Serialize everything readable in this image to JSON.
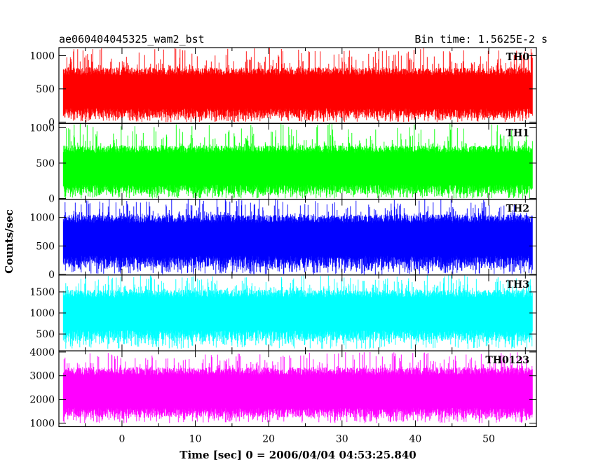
{
  "header": {
    "left": "ae060404045325_wam2_bst",
    "right": "Bin time: 1.5625E-2 s"
  },
  "chart_data": {
    "type": "line",
    "xlabel": "Time [sec] 0 = 2006/04/04 04:53:25.840",
    "ylabel": "Counts/sec",
    "xlim": [
      -8.6,
      56.5
    ],
    "data_x_range": [
      -8.0,
      56.0
    ],
    "x_ticks": [
      0,
      10,
      20,
      30,
      40,
      50
    ],
    "panels": [
      {
        "label": "TH0",
        "color": "#ff0000",
        "ylim": [
          -20,
          1120
        ],
        "y_ticks": [
          0,
          500,
          1000
        ],
        "baseline": 350,
        "typical_low": 60,
        "typical_high": 820,
        "min": 0,
        "max": 1120
      },
      {
        "label": "TH1",
        "color": "#00ff00",
        "ylim": [
          -10,
          1060
        ],
        "y_ticks": [
          0,
          500,
          1000
        ],
        "baseline": 330,
        "typical_low": 60,
        "typical_high": 750,
        "min": 0,
        "max": 1060
      },
      {
        "label": "TH2",
        "color": "#0000ff",
        "ylim": [
          -10,
          1320
        ],
        "y_ticks": [
          0,
          500,
          1000
        ],
        "baseline": 540,
        "typical_low": 110,
        "typical_high": 1050,
        "min": 0,
        "max": 1320
      },
      {
        "label": "TH3",
        "color": "#00ffff",
        "ylim": [
          100,
          1900
        ],
        "y_ticks": [
          500,
          1000,
          1500
        ],
        "baseline": 850,
        "typical_low": 330,
        "typical_high": 1550,
        "min": 140,
        "max": 1900
      },
      {
        "label": "TH0123",
        "color": "#ff00ff",
        "ylim": [
          850,
          4050
        ],
        "y_ticks": [
          1000,
          2000,
          3000,
          4000
        ],
        "baseline": 2050,
        "typical_low": 1230,
        "typical_high": 3350,
        "min": 1000,
        "max": 4000
      }
    ]
  }
}
